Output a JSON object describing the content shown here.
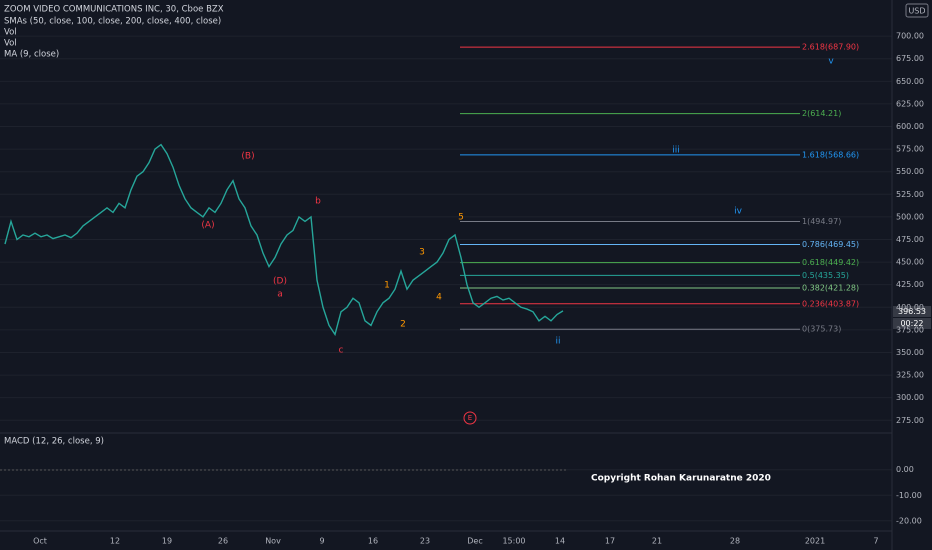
{
  "header": {
    "title": "ZOOM VIDEO COMMUNICATIONS INC, 30, Cboe BZX",
    "indicators": [
      "SMAs (50, close, 100, close, 200, close, 400, close)",
      "Vol",
      "Vol",
      "MA (9, close)"
    ],
    "currency": "USD"
  },
  "macd_title": "MACD (12, 26, close, 9)",
  "copyright": "Copyright Rohan Karunaratne 2020",
  "price_tags": [
    "396.53",
    "00:22"
  ],
  "x_labels": [
    "Oct",
    "12",
    "19",
    "26",
    "Nov",
    "9",
    "16",
    "23",
    "Dec",
    "15:00",
    "14",
    "17",
    "21",
    "28",
    "2021",
    "7"
  ],
  "waves": [
    "(B)",
    "(A)",
    "(D)",
    "a",
    "b",
    "c",
    "1",
    "2",
    "3",
    "4",
    "5",
    "iii",
    "iv",
    "v",
    "ii",
    "E"
  ],
  "chart_data": {
    "type": "line",
    "color": "#26a69a",
    "values": [
      470,
      495,
      475,
      480,
      478,
      482,
      478,
      480,
      476,
      478,
      480,
      477,
      482,
      490,
      495,
      500,
      505,
      510,
      505,
      515,
      510,
      530,
      545,
      550,
      560,
      575,
      580,
      570,
      555,
      535,
      520,
      510,
      505,
      500,
      510,
      505,
      515,
      530,
      540,
      520,
      510,
      490,
      480,
      460,
      445,
      455,
      470,
      480,
      485,
      500,
      495,
      500,
      430,
      400,
      380,
      370,
      395,
      400,
      410,
      405,
      385,
      380,
      395,
      405,
      410,
      420,
      440,
      420,
      430,
      435,
      440,
      445,
      450,
      460,
      475,
      480,
      455,
      425,
      405,
      400,
      405,
      410,
      412,
      408,
      410,
      405,
      400,
      398,
      395,
      385,
      390,
      385,
      392,
      396
    ],
    "ylim": [
      262,
      740
    ],
    "yticks": [
      {
        "value": 700,
        "label": "700.00"
      },
      {
        "value": 675,
        "label": "675.00"
      },
      {
        "value": 650,
        "label": "650.00"
      },
      {
        "value": 625,
        "label": "625.00"
      },
      {
        "value": 600,
        "label": "600.00"
      },
      {
        "value": 575,
        "label": "575.00"
      },
      {
        "value": 550,
        "label": "550.00"
      },
      {
        "value": 525,
        "label": "525.00"
      },
      {
        "value": 500,
        "label": "500.00"
      },
      {
        "value": 475,
        "label": "475.00"
      },
      {
        "value": 450,
        "label": "450.00"
      },
      {
        "value": 425,
        "label": "425.00"
      },
      {
        "value": 400,
        "label": "400.00"
      },
      {
        "value": 375,
        "label": "375.00"
      },
      {
        "value": 350,
        "label": "350.00"
      },
      {
        "value": 325,
        "label": "325.00"
      },
      {
        "value": 300,
        "label": "300.00"
      },
      {
        "value": 275,
        "label": "275.00"
      }
    ],
    "levels": [
      {
        "label": "2.618(687.90)",
        "value": 687.9,
        "color": "#f23645"
      },
      {
        "label": "2(614.21)",
        "value": 614.21,
        "color": "#4caf50"
      },
      {
        "label": "1.618(568.66)",
        "value": 568.66,
        "color": "#2196f3"
      },
      {
        "label": "1(494.97)",
        "value": 494.97,
        "color": "#787b86"
      },
      {
        "label": "0.786(469.45)",
        "value": 469.45,
        "color": "#64b5f6"
      },
      {
        "label": "0.618(449.42)",
        "value": 449.42,
        "color": "#4caf50"
      },
      {
        "label": "0.5(435.35)",
        "value": 435.35,
        "color": "#26a69a"
      },
      {
        "label": "0.382(421.28)",
        "value": 421.28,
        "color": "#81c784"
      },
      {
        "label": "0.236(403.87)",
        "value": 403.87,
        "color": "#f23645"
      },
      {
        "label": "0(375.73)",
        "value": 375.73,
        "color": "#787b86"
      }
    ],
    "macd_ylim": [
      -24,
      14
    ],
    "macd_yticks": [
      {
        "value": 0,
        "label": "0.00"
      },
      {
        "value": -10,
        "label": "-10.00"
      },
      {
        "value": -20,
        "label": "-20.00"
      }
    ],
    "grid": true
  }
}
